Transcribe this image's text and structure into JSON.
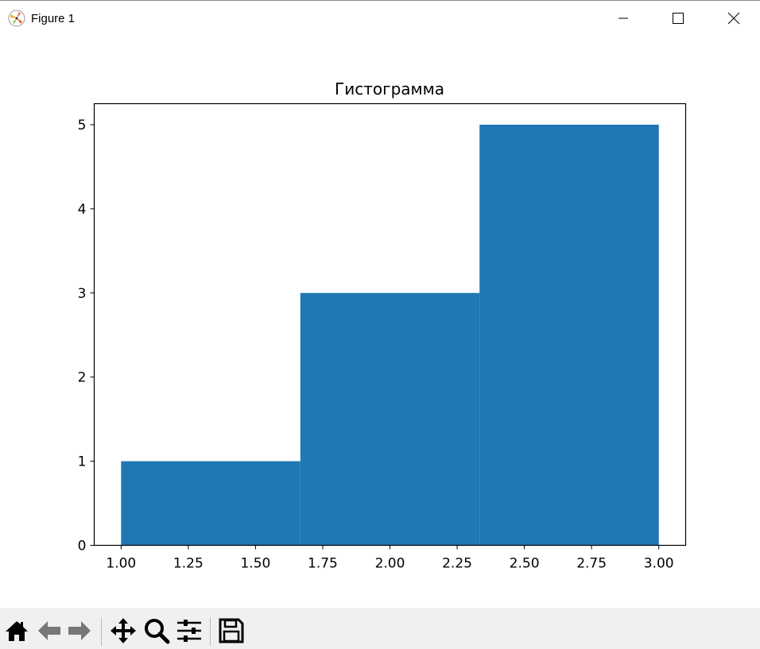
{
  "window": {
    "title": "Figure 1",
    "icon": "matplotlib-logo-icon",
    "controls": [
      "minimize-icon",
      "maximize-icon",
      "close-icon"
    ]
  },
  "toolbar": {
    "buttons": [
      "home-icon",
      "back-icon",
      "forward-icon",
      "pan-icon",
      "zoom-icon",
      "configure-subplots-icon",
      "save-icon"
    ]
  },
  "chart_data": {
    "type": "bar",
    "title": "Гистограмма",
    "xlabel": "",
    "ylabel": "",
    "bin_edges": [
      1.0,
      1.6667,
      2.3333,
      3.0
    ],
    "values": [
      1,
      3,
      5
    ],
    "color": "#1f77b4",
    "xlim": [
      0.9,
      3.1
    ],
    "ylim": [
      0,
      5.25
    ],
    "xticks": [
      "1.00",
      "1.25",
      "1.50",
      "1.75",
      "2.00",
      "2.25",
      "2.50",
      "2.75",
      "3.00"
    ],
    "yticks": [
      "0",
      "1",
      "2",
      "3",
      "4",
      "5"
    ],
    "grid": false
  }
}
